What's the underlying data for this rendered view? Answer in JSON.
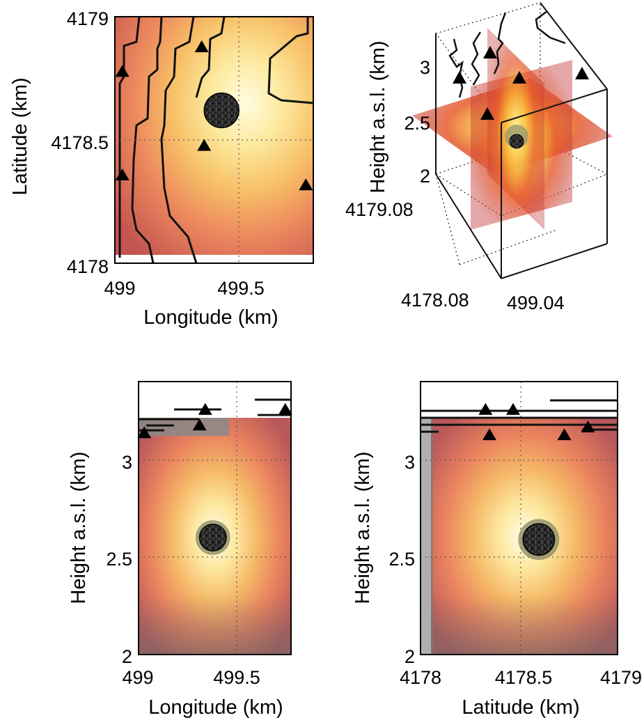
{
  "chart_data": [
    {
      "id": "map-view",
      "type": "heatmap",
      "title": "",
      "xlabel": "Longitude (km)",
      "ylabel": "Latitude (km)",
      "xlim": [
        499,
        499.8
      ],
      "ylim": [
        4178,
        4179
      ],
      "xticks": [
        "499",
        "499.5"
      ],
      "yticks": [
        "4178",
        "4178.5",
        "4179"
      ],
      "xtick_values": [
        499,
        499.5
      ],
      "ytick_values": [
        4178,
        4178.5,
        4179
      ],
      "grid": true,
      "source": {
        "x": 499.43,
        "y": 4178.62,
        "radius": 0.07
      },
      "stations": [
        {
          "x": 499.03,
          "y": 4178.78
        },
        {
          "x": 499.35,
          "y": 4178.88
        },
        {
          "x": 499.36,
          "y": 4178.48
        },
        {
          "x": 499.03,
          "y": 4178.36
        },
        {
          "x": 499.77,
          "y": 4178.32
        }
      ]
    },
    {
      "id": "perspective-view",
      "type": "heatmap",
      "title": "",
      "ylabel": "Height a.s.l. (km)",
      "zticks": [
        "2",
        "2.5",
        "3"
      ],
      "ztick_values": [
        2,
        2.5,
        3
      ],
      "tick_labels_extra": [
        "4179.08",
        "4178.08",
        "499.04"
      ],
      "grid": true
    },
    {
      "id": "longitude-section",
      "type": "heatmap",
      "title": "",
      "xlabel": "Longitude (km)",
      "ylabel": "Height a.s.l. (km)",
      "xlim": [
        499,
        499.8
      ],
      "ylim": [
        2,
        3.4
      ],
      "xticks": [
        "499",
        "499.5"
      ],
      "yticks": [
        "2",
        "2.5",
        "3"
      ],
      "xtick_values": [
        499,
        499.5
      ],
      "ytick_values": [
        2,
        2.5,
        3
      ],
      "grid": true,
      "topography_top": 3.2,
      "source": {
        "x": 499.39,
        "y": 2.6,
        "radius": 0.07
      },
      "stations": [
        {
          "x": 499.03,
          "y": 3.14
        },
        {
          "x": 499.32,
          "y": 3.18
        },
        {
          "x": 499.35,
          "y": 3.26
        },
        {
          "x": 499.77,
          "y": 3.26
        }
      ]
    },
    {
      "id": "latitude-section",
      "type": "heatmap",
      "title": "",
      "xlabel": "Latitude (km)",
      "ylabel": "Height a.s.l. (km)",
      "xlim": [
        4178,
        4179
      ],
      "ylim": [
        2,
        3.4
      ],
      "xticks": [
        "4178",
        "4178.5",
        "4179"
      ],
      "yticks": [
        "2",
        "2.5",
        "3"
      ],
      "xtick_values": [
        4178,
        4178.5,
        4179
      ],
      "ytick_values": [
        2,
        2.5,
        3
      ],
      "grid": true,
      "topography_top": 3.2,
      "source": {
        "x": 4178.6,
        "y": 2.59,
        "radius": 0.08
      },
      "stations": [
        {
          "x": 4178.33,
          "y": 3.26
        },
        {
          "x": 4178.47,
          "y": 3.26
        },
        {
          "x": 4178.35,
          "y": 3.13
        },
        {
          "x": 4178.73,
          "y": 3.13
        },
        {
          "x": 4178.85,
          "y": 3.17
        }
      ]
    }
  ]
}
